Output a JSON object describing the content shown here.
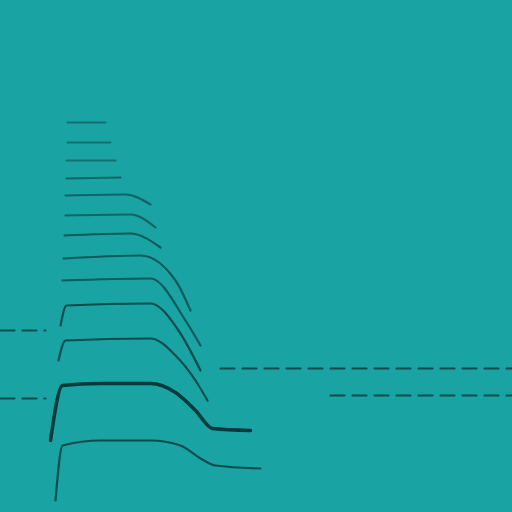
{
  "chart_data": {
    "type": "line",
    "color": "#1aa3a3",
    "xlim": [
      0,
      512
    ],
    "ylim": [
      0,
      512
    ],
    "tick_labels": false,
    "grid": false,
    "series": [
      {
        "color": "#0b4d4f",
        "line_style": "solid",
        "x": [
          55,
          62,
          100,
          150,
          180,
          200,
          215,
          260
        ],
        "values": [
          12,
          67,
          72,
          72,
          67,
          54,
          47,
          44
        ]
      },
      {
        "color": "#073a3c",
        "line_style": "solid",
        "x": [
          50,
          62,
          100,
          150,
          175,
          195,
          212,
          250
        ],
        "values": [
          72,
          127,
          129,
          129,
          120,
          102,
          84,
          82
        ]
      },
      {
        "color": "#0b4d4f",
        "line_style": "solid",
        "x": [
          58,
          65,
          150,
          175,
          195,
          207
        ],
        "values": [
          152,
          172,
          174,
          157,
          132,
          112
        ]
      },
      {
        "color": "#0b4d4f",
        "line_style": "solid",
        "x": [
          60,
          66,
          150,
          178,
          200
        ],
        "values": [
          187,
          207,
          209,
          182,
          142
        ]
      },
      {
        "color": "#0f5a5c",
        "line_style": "solid",
        "x": [
          62,
          150,
          185,
          200
        ],
        "values": [
          232,
          234,
          192,
          167
        ]
      },
      {
        "color": "#0f5a5c",
        "line_style": "solid",
        "x": [
          63,
          140,
          175,
          190
        ],
        "values": [
          254,
          257,
          232,
          202
        ]
      },
      {
        "color": "#0f5a5c",
        "line_style": "solid",
        "x": [
          64,
          130,
          160
        ],
        "values": [
          277,
          279,
          265
        ]
      },
      {
        "color": "#136466",
        "line_style": "solid",
        "x": [
          65,
          130,
          155
        ],
        "values": [
          297,
          298,
          285
        ]
      },
      {
        "color": "#136466",
        "line_style": "solid",
        "x": [
          65,
          125,
          150
        ],
        "values": [
          317,
          318,
          308
        ]
      },
      {
        "color": "#136466",
        "line_style": "solid",
        "x": [
          66,
          120
        ],
        "values": [
          334,
          335
        ]
      },
      {
        "color": "#176e70",
        "line_style": "solid",
        "x": [
          66,
          115
        ],
        "values": [
          352,
          352
        ]
      },
      {
        "color": "#176e70",
        "line_style": "solid",
        "x": [
          67,
          110
        ],
        "values": [
          370,
          370
        ]
      },
      {
        "color": "#176e70",
        "line_style": "solid",
        "x": [
          67,
          105
        ],
        "values": [
          390,
          390
        ]
      },
      {
        "color": "#0b4d4f",
        "line_style": "dashed",
        "x": [
          220,
          512
        ],
        "values": [
          144,
          144
        ]
      },
      {
        "color": "#0b4d4f",
        "line_style": "dashed",
        "x": [
          330,
          512
        ],
        "values": [
          117,
          117
        ]
      },
      {
        "color": "#0b4d4f",
        "line_style": "dashed",
        "x": [
          0,
          45
        ],
        "values": [
          114,
          114
        ]
      },
      {
        "color": "#0b4d4f",
        "line_style": "dashed",
        "x": [
          0,
          45
        ],
        "values": [
          182,
          182
        ]
      }
    ]
  }
}
